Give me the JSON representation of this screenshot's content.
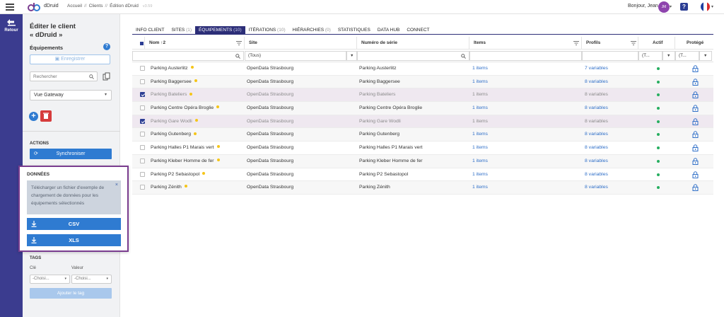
{
  "topbar": {
    "app_name": "dDruid",
    "breadcrumbs": [
      "Accueil",
      "Clients",
      "Édition dDruid"
    ],
    "separator": "//",
    "version": "v3.59",
    "greeting": "Bonjour, Jean",
    "avatar_initials": "JM",
    "help_label": "?"
  },
  "rail": {
    "back_label": "Retour"
  },
  "side": {
    "title_line1": "Éditer le client",
    "title_line2": "« dDruid »",
    "subtitle": "Équipements",
    "save_label": "Enregistrer",
    "search_placeholder": "Rechercher",
    "view_select": "Vue Gateway",
    "actions_label": "ACTIONS",
    "sync_label": "Synchroniser",
    "tags_label": "TAGS",
    "key_label": "Clé",
    "value_label": "Valeur",
    "key_select": "-Choisi...",
    "value_select": "-Choisi...",
    "add_tag_label": "Ajouter le tag"
  },
  "popup": {
    "title": "DONNÉES",
    "info": "Télécharger un fichier d'exemple de chargement de données pour les équipements sélectionnés",
    "csv_label": "CSV",
    "xls_label": "XLS"
  },
  "tabs": [
    {
      "label": "INFO CLIENT",
      "count": ""
    },
    {
      "label": "SITES",
      "count": "(1)"
    },
    {
      "label": "ÉQUIPEMENTS",
      "count": "(10)"
    },
    {
      "label": "ITÉRATIONS",
      "count": "(10)"
    },
    {
      "label": "HIÉRARCHIES",
      "count": "(0)"
    },
    {
      "label": "STATISTIQUES",
      "count": ""
    },
    {
      "label": "DATA HUB",
      "count": ""
    },
    {
      "label": "CONNECT",
      "count": ""
    }
  ],
  "table": {
    "headers": {
      "name": "Nom ↑2",
      "site": "Site",
      "serial": "Numéro de série",
      "items": "Items",
      "profiles": "Profils",
      "active": "Actif",
      "protected": "Protégé"
    },
    "filters": {
      "site": "(Tous)",
      "active": "(T...",
      "protected": "(T..."
    },
    "rows": [
      {
        "name": "Parking Austerlitz",
        "site": "OpenData Strasbourg",
        "serial": "Parking Austerlitz",
        "items": "1 items",
        "profiles": "7 variables",
        "selected": false
      },
      {
        "name": "Parking Baggersee",
        "site": "OpenData Strasbourg",
        "serial": "Parking Baggersee",
        "items": "1 items",
        "profiles": "8 variables",
        "selected": false
      },
      {
        "name": "Parking Bateliers",
        "site": "OpenData Strasbourg",
        "serial": "Parking Bateliers",
        "items": "1 items",
        "profiles": "8 variables",
        "selected": true
      },
      {
        "name": "Parking Centre Opéra Broglie",
        "site": "OpenData Strasbourg",
        "serial": "Parking Centre Opéra Broglie",
        "items": "1 items",
        "profiles": "8 variables",
        "selected": false
      },
      {
        "name": "Parking Gare Wodli",
        "site": "OpenData Strasbourg",
        "serial": "Parking Gare Wodli",
        "items": "1 items",
        "profiles": "8 variables",
        "selected": true
      },
      {
        "name": "Parking Gutenberg",
        "site": "OpenData Strasbourg",
        "serial": "Parking Gutenberg",
        "items": "1 items",
        "profiles": "8 variables",
        "selected": false
      },
      {
        "name": "Parking Halles P1 Marais vert",
        "site": "OpenData Strasbourg",
        "serial": "Parking Halles P1 Marais vert",
        "items": "1 items",
        "profiles": "8 variables",
        "selected": false
      },
      {
        "name": "Parking Kleber Homme de fer",
        "site": "OpenData Strasbourg",
        "serial": "Parking Kleber Homme de fer",
        "items": "1 items",
        "profiles": "8 variables",
        "selected": false
      },
      {
        "name": "Parking P2 Sebastopol",
        "site": "OpenData Strasbourg",
        "serial": "Parking P2 Sebastopol",
        "items": "1 items",
        "profiles": "8 variables",
        "selected": false
      },
      {
        "name": "Parking Zénith",
        "site": "OpenData Strasbourg",
        "serial": "Parking Zénith",
        "items": "1 items",
        "profiles": "8 variables",
        "selected": false
      }
    ]
  },
  "colors": {
    "rail": "#3b3c8f",
    "accent": "#2f7bd1",
    "tab_active": "#2c2e78",
    "popup_border": "#7a3d8f",
    "active_dot": "#27ae60",
    "status_dot": "#f5c518"
  }
}
